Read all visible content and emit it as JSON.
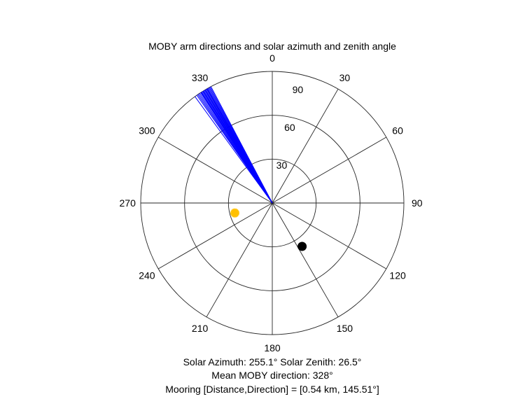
{
  "chart_data": {
    "type": "polar",
    "title": "MOBY arm directions and solar azimuth and zenith angle",
    "angle_ticks": [
      0,
      30,
      60,
      90,
      120,
      150,
      180,
      210,
      240,
      270,
      300,
      330
    ],
    "radial_ticks": [
      30,
      60,
      90
    ],
    "rlim": [
      0,
      90
    ],
    "angle_zero": "top",
    "angle_direction": "clockwise",
    "grid": true,
    "series": [
      {
        "kind": "lines",
        "color": "#0000ff",
        "r": 90,
        "theta": [
          324.0,
          325.0,
          325.5,
          326.0,
          326.5,
          327.0,
          327.3,
          327.6,
          328.0,
          328.3,
          328.6,
          329.0,
          329.3,
          329.6,
          330.0,
          330.3,
          330.6,
          331.0,
          331.4,
          331.8,
          332.2
        ]
      },
      {
        "kind": "marker",
        "shape": "star",
        "color": "#ffc000",
        "theta": 255.1,
        "r": 26.5
      },
      {
        "kind": "marker",
        "shape": "dot",
        "color": "#000000",
        "theta": 145.51,
        "r": 36
      }
    ],
    "captions": [
      "Solar Azimuth: 255.1°   Solar Zenith: 26.5°",
      "Mean MOBY direction: 328°",
      "Mooring [Distance,Direction] = [0.54 km, 145.51°]"
    ]
  }
}
